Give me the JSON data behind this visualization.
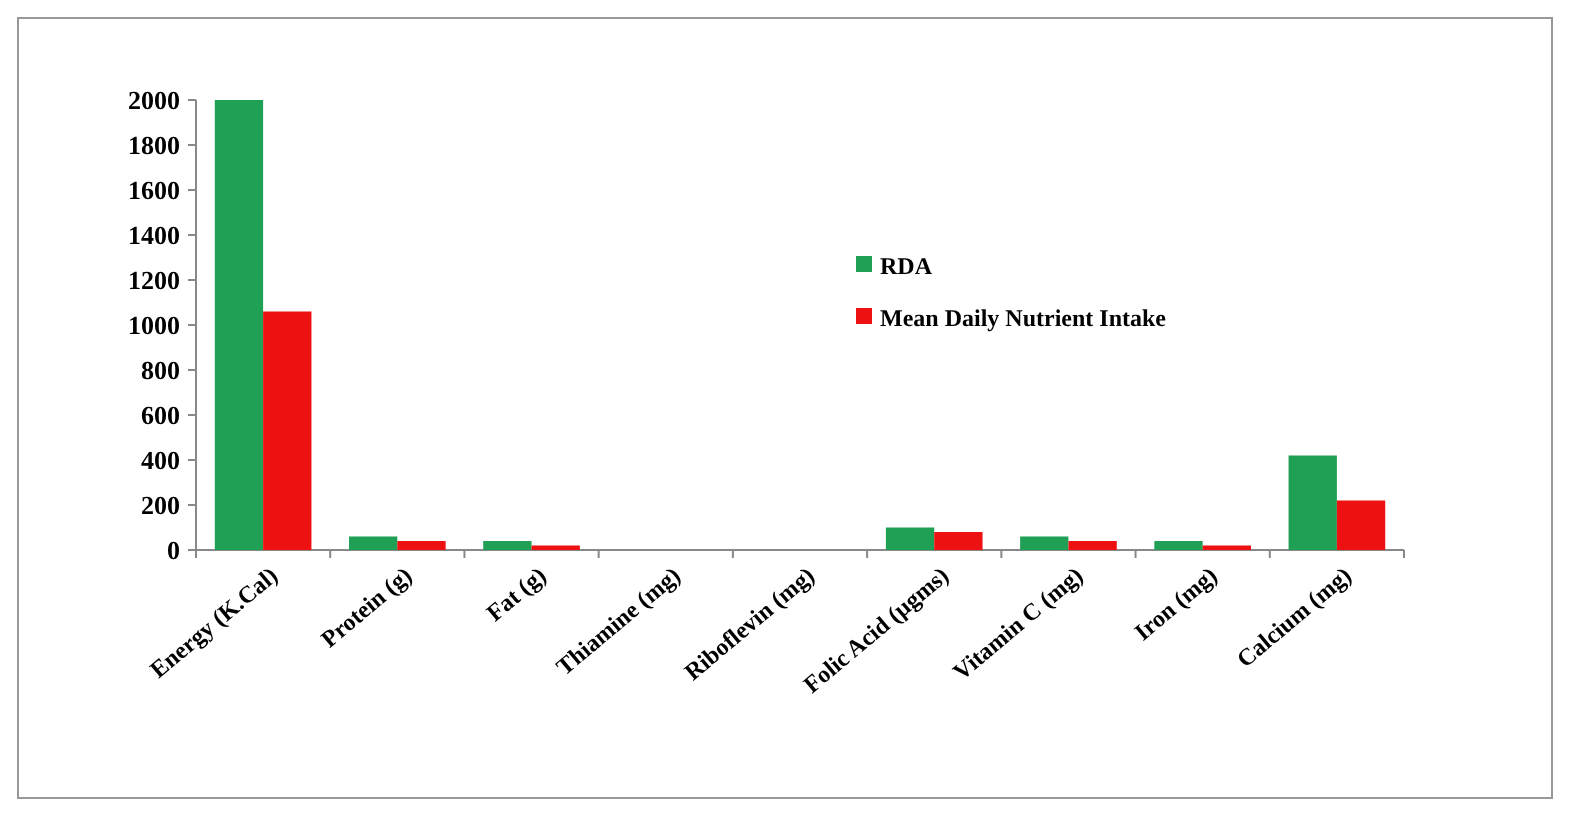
{
  "chart_data": {
    "type": "bar",
    "categories": [
      "Energy (K.Cal)",
      "Protein (g)",
      "Fat (g)",
      "Thiamine (mg)",
      "Riboflevin (mg)",
      "Folic Acid (µgms)",
      "Vitamin C (mg)",
      "Iron (mg)",
      "Calcium (mg)"
    ],
    "series": [
      {
        "name": "RDA",
        "color": "#1fa055",
        "values": [
          2000,
          60,
          40,
          null,
          null,
          100,
          60,
          40,
          420
        ]
      },
      {
        "name": "Mean Daily Nutrient Intake",
        "color": "#ee1111",
        "values": [
          1060,
          40,
          20,
          null,
          null,
          80,
          40,
          20,
          220
        ]
      }
    ],
    "ylim": [
      0,
      2000
    ],
    "yticks": [
      0,
      200,
      400,
      600,
      800,
      1000,
      1200,
      1400,
      1600,
      1800,
      2000
    ],
    "grid": false,
    "legend": "right"
  }
}
